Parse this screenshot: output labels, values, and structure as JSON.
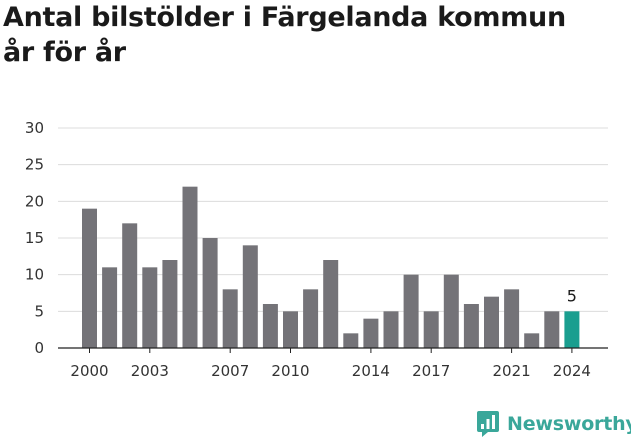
{
  "title_lines": [
    "Antal bilstölder i Färgelanda kommun",
    "år för år"
  ],
  "brand": {
    "name": "Newsworthy",
    "icon": "newsworthy-logo-icon",
    "color": "#3aa79a"
  },
  "chart_data": {
    "type": "bar",
    "title": "Antal bilstölder i Färgelanda kommun år för år",
    "xlabel": "",
    "ylabel": "",
    "ylim": [
      0,
      30
    ],
    "yticks": [
      0,
      5,
      10,
      15,
      20,
      25,
      30
    ],
    "xticks": [
      "2000",
      "2003",
      "2007",
      "2010",
      "2014",
      "2017",
      "2021",
      "2024"
    ],
    "grid": true,
    "legend": "none",
    "bar_color": "#747378",
    "highlight_color": "#1a9e8f",
    "highlight_category": "2024",
    "highlight_label": "5",
    "categories": [
      "2000",
      "2001",
      "2002",
      "2003",
      "2004",
      "2005",
      "2006",
      "2007",
      "2008",
      "2009",
      "2010",
      "2011",
      "2012",
      "2013",
      "2014",
      "2015",
      "2016",
      "2017",
      "2018",
      "2019",
      "2020",
      "2021",
      "2022",
      "2023",
      "2024"
    ],
    "values": [
      19,
      11,
      17,
      11,
      12,
      22,
      15,
      8,
      14,
      6,
      5,
      8,
      12,
      2,
      4,
      5,
      10,
      5,
      10,
      6,
      7,
      8,
      2,
      5,
      5
    ]
  }
}
